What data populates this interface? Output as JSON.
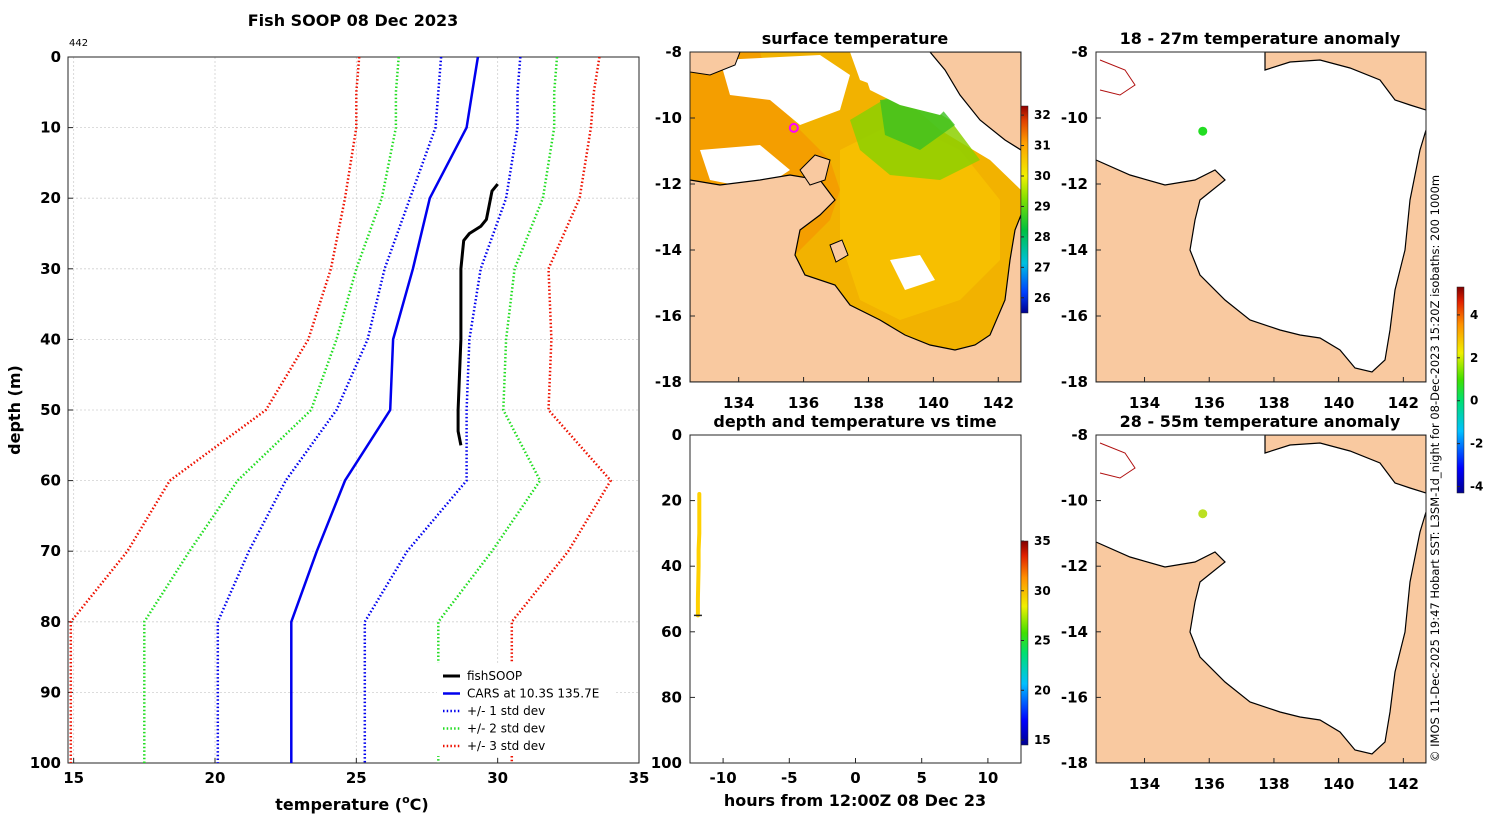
{
  "figure": {
    "credit": "© IMOS 11-Dec-2025 19:47 Hobart SST: L3SM-1d_night for 08-Dec-2023 15:20Z isobaths: 200  1000m"
  },
  "colors": {
    "land": "#f9c9a0",
    "coast": "#000000",
    "isobath": "#b01010",
    "fishsoop": "#000000",
    "cars": "#0000ee",
    "std1": "#0000ee",
    "std2": "#22dd22",
    "std3": "#ee1100",
    "marker_ring": "#ff00ff",
    "anom_18_27": "#22dd22",
    "anom_28_55": "#bbe022"
  },
  "chart_data": [
    {
      "id": "profile",
      "type": "line",
      "title": "Fish SOOP 08 Dec 2023",
      "corner_label": "442",
      "xlabel": "temperature (",
      "xlabel_sup": "o",
      "xlabel_end": "C)",
      "ylabel": "depth (m)",
      "xlim": [
        14.8,
        35
      ],
      "ylim": [
        100,
        0
      ],
      "y_reversed": true,
      "grid": true,
      "xticks": [
        15,
        20,
        25,
        30,
        35
      ],
      "yticks": [
        0,
        10,
        20,
        30,
        40,
        50,
        60,
        70,
        80,
        90,
        100
      ],
      "legend_position": "bottom-right",
      "series": [
        {
          "name": "fishSOOP",
          "style": "solid",
          "width": 3,
          "color_key": "fishsoop",
          "x": [
            30.0,
            29.8,
            29.7,
            29.6,
            29.4,
            29.0,
            28.8,
            28.75,
            28.7,
            28.7,
            28.7,
            28.6,
            28.6,
            28.7
          ],
          "y": [
            18,
            19,
            21,
            23,
            24,
            25,
            26,
            28,
            30,
            35,
            40,
            50,
            53,
            55
          ]
        },
        {
          "name": "CARS at 10.3S 135.7E",
          "style": "solid",
          "width": 2.5,
          "color_key": "cars",
          "x": [
            29.3,
            29.1,
            28.9,
            27.6,
            27.0,
            26.3,
            26.2,
            24.6,
            23.6,
            22.7,
            22.7,
            22.7
          ],
          "y": [
            0,
            5,
            10,
            20,
            30,
            40,
            50,
            60,
            70,
            80,
            90,
            100
          ]
        },
        {
          "name": "+/- 1 std dev",
          "style": "dotted",
          "width": 2.5,
          "color_key": "std1",
          "x": [
            28.0,
            27.9,
            27.8,
            26.9,
            26.0,
            25.4,
            24.3,
            22.5,
            21.2,
            20.1,
            20.1,
            20.1
          ],
          "y": [
            0,
            5,
            10,
            20,
            30,
            40,
            50,
            60,
            70,
            80,
            90,
            100
          ]
        },
        {
          "name": "",
          "style": "dotted",
          "width": 2.5,
          "color_key": "std1",
          "x": [
            30.8,
            30.7,
            30.7,
            30.3,
            29.4,
            29.0,
            28.9,
            28.9,
            26.8,
            25.3,
            25.3,
            25.3
          ],
          "y": [
            0,
            5,
            10,
            20,
            30,
            40,
            50,
            60,
            70,
            80,
            90,
            100
          ]
        },
        {
          "name": "+/- 2 std dev",
          "style": "dotted",
          "width": 2.5,
          "color_key": "std2",
          "x": [
            26.5,
            26.4,
            26.4,
            25.9,
            25.0,
            24.3,
            23.4,
            20.8,
            19.1,
            17.5,
            17.5,
            17.5
          ],
          "y": [
            0,
            5,
            10,
            20,
            30,
            40,
            50,
            60,
            70,
            80,
            90,
            100
          ]
        },
        {
          "name": "",
          "style": "dotted",
          "width": 2.5,
          "color_key": "std2",
          "x": [
            32.1,
            32.0,
            32.0,
            31.6,
            30.6,
            30.3,
            30.2,
            31.5,
            29.8,
            27.9,
            27.9,
            27.9
          ],
          "y": [
            0,
            5,
            10,
            20,
            30,
            40,
            50,
            60,
            70,
            80,
            90,
            100
          ]
        },
        {
          "name": "+/- 3 std dev",
          "style": "dotted",
          "width": 2.5,
          "color_key": "std3",
          "x": [
            25.1,
            25.0,
            25.0,
            24.6,
            24.1,
            23.3,
            21.8,
            18.4,
            16.9,
            14.9,
            14.9,
            14.9
          ],
          "y": [
            0,
            5,
            10,
            20,
            30,
            40,
            50,
            60,
            70,
            80,
            90,
            100
          ]
        },
        {
          "name": "",
          "style": "dotted",
          "width": 2.5,
          "color_key": "std3",
          "x": [
            33.6,
            33.4,
            33.3,
            32.9,
            31.8,
            31.9,
            31.8,
            34.0,
            32.5,
            30.5,
            30.5,
            30.5
          ],
          "y": [
            0,
            5,
            10,
            20,
            30,
            40,
            50,
            60,
            70,
            80,
            90,
            100
          ]
        }
      ]
    },
    {
      "id": "sst",
      "type": "heatmap",
      "title": "surface temperature",
      "xlim": [
        132.5,
        142.7
      ],
      "ylim": [
        -18,
        -8
      ],
      "xticks": [
        134,
        136,
        138,
        140,
        142
      ],
      "yticks": [
        -8,
        -10,
        -12,
        -14,
        -16,
        -18
      ],
      "colorbar": {
        "min": 25.5,
        "max": 32.3,
        "ticks": [
          26,
          27,
          28,
          29,
          30,
          31,
          32
        ]
      },
      "marker": {
        "lon": 135.7,
        "lat": -10.3
      }
    },
    {
      "id": "timeseries",
      "type": "scatter",
      "title": "depth and temperature vs time",
      "xlabel": "hours from 12:00Z 08 Dec 23",
      "xlim": [
        -12.5,
        12.5
      ],
      "ylim": [
        100,
        0
      ],
      "y_reversed": true,
      "xticks": [
        -10,
        -5,
        0,
        5,
        10
      ],
      "yticks": [
        0,
        20,
        40,
        60,
        80,
        100
      ],
      "colorbar": {
        "min": 14.5,
        "max": 35,
        "ticks": [
          15,
          20,
          25,
          30,
          35
        ]
      },
      "points": {
        "x": [
          -11.8,
          -11.8,
          -11.8,
          -11.85,
          -11.85,
          -11.9,
          -11.9
        ],
        "depth": [
          18,
          25,
          30,
          35,
          40,
          50,
          55
        ],
        "temp": [
          30.0,
          29.0,
          28.7,
          28.7,
          28.7,
          28.6,
          28.7
        ]
      }
    },
    {
      "id": "anom1",
      "type": "scatter",
      "title": "18 - 27m temperature anomaly",
      "xlim": [
        132.5,
        142.7
      ],
      "ylim": [
        -18,
        -8
      ],
      "xticks": [
        134,
        136,
        138,
        140,
        142
      ],
      "yticks": [
        -8,
        -10,
        -12,
        -14,
        -16,
        -18
      ],
      "point": {
        "lon": 135.8,
        "lat": -10.4,
        "anomaly": 0.5
      }
    },
    {
      "id": "anom2",
      "type": "scatter",
      "title": "28 - 55m temperature anomaly",
      "xlim": [
        132.5,
        142.7
      ],
      "ylim": [
        -18,
        -8
      ],
      "xticks": [
        134,
        136,
        138,
        140,
        142
      ],
      "yticks": [
        -8,
        -10,
        -12,
        -14,
        -16,
        -18
      ],
      "point": {
        "lon": 135.8,
        "lat": -10.4,
        "anomaly": 1.4
      }
    },
    {
      "id": "anom_colorbar",
      "type": "heatmap",
      "colorbar": {
        "min": -4.3,
        "max": 5.3,
        "ticks": [
          -4,
          -2,
          0,
          2,
          4
        ]
      }
    }
  ]
}
